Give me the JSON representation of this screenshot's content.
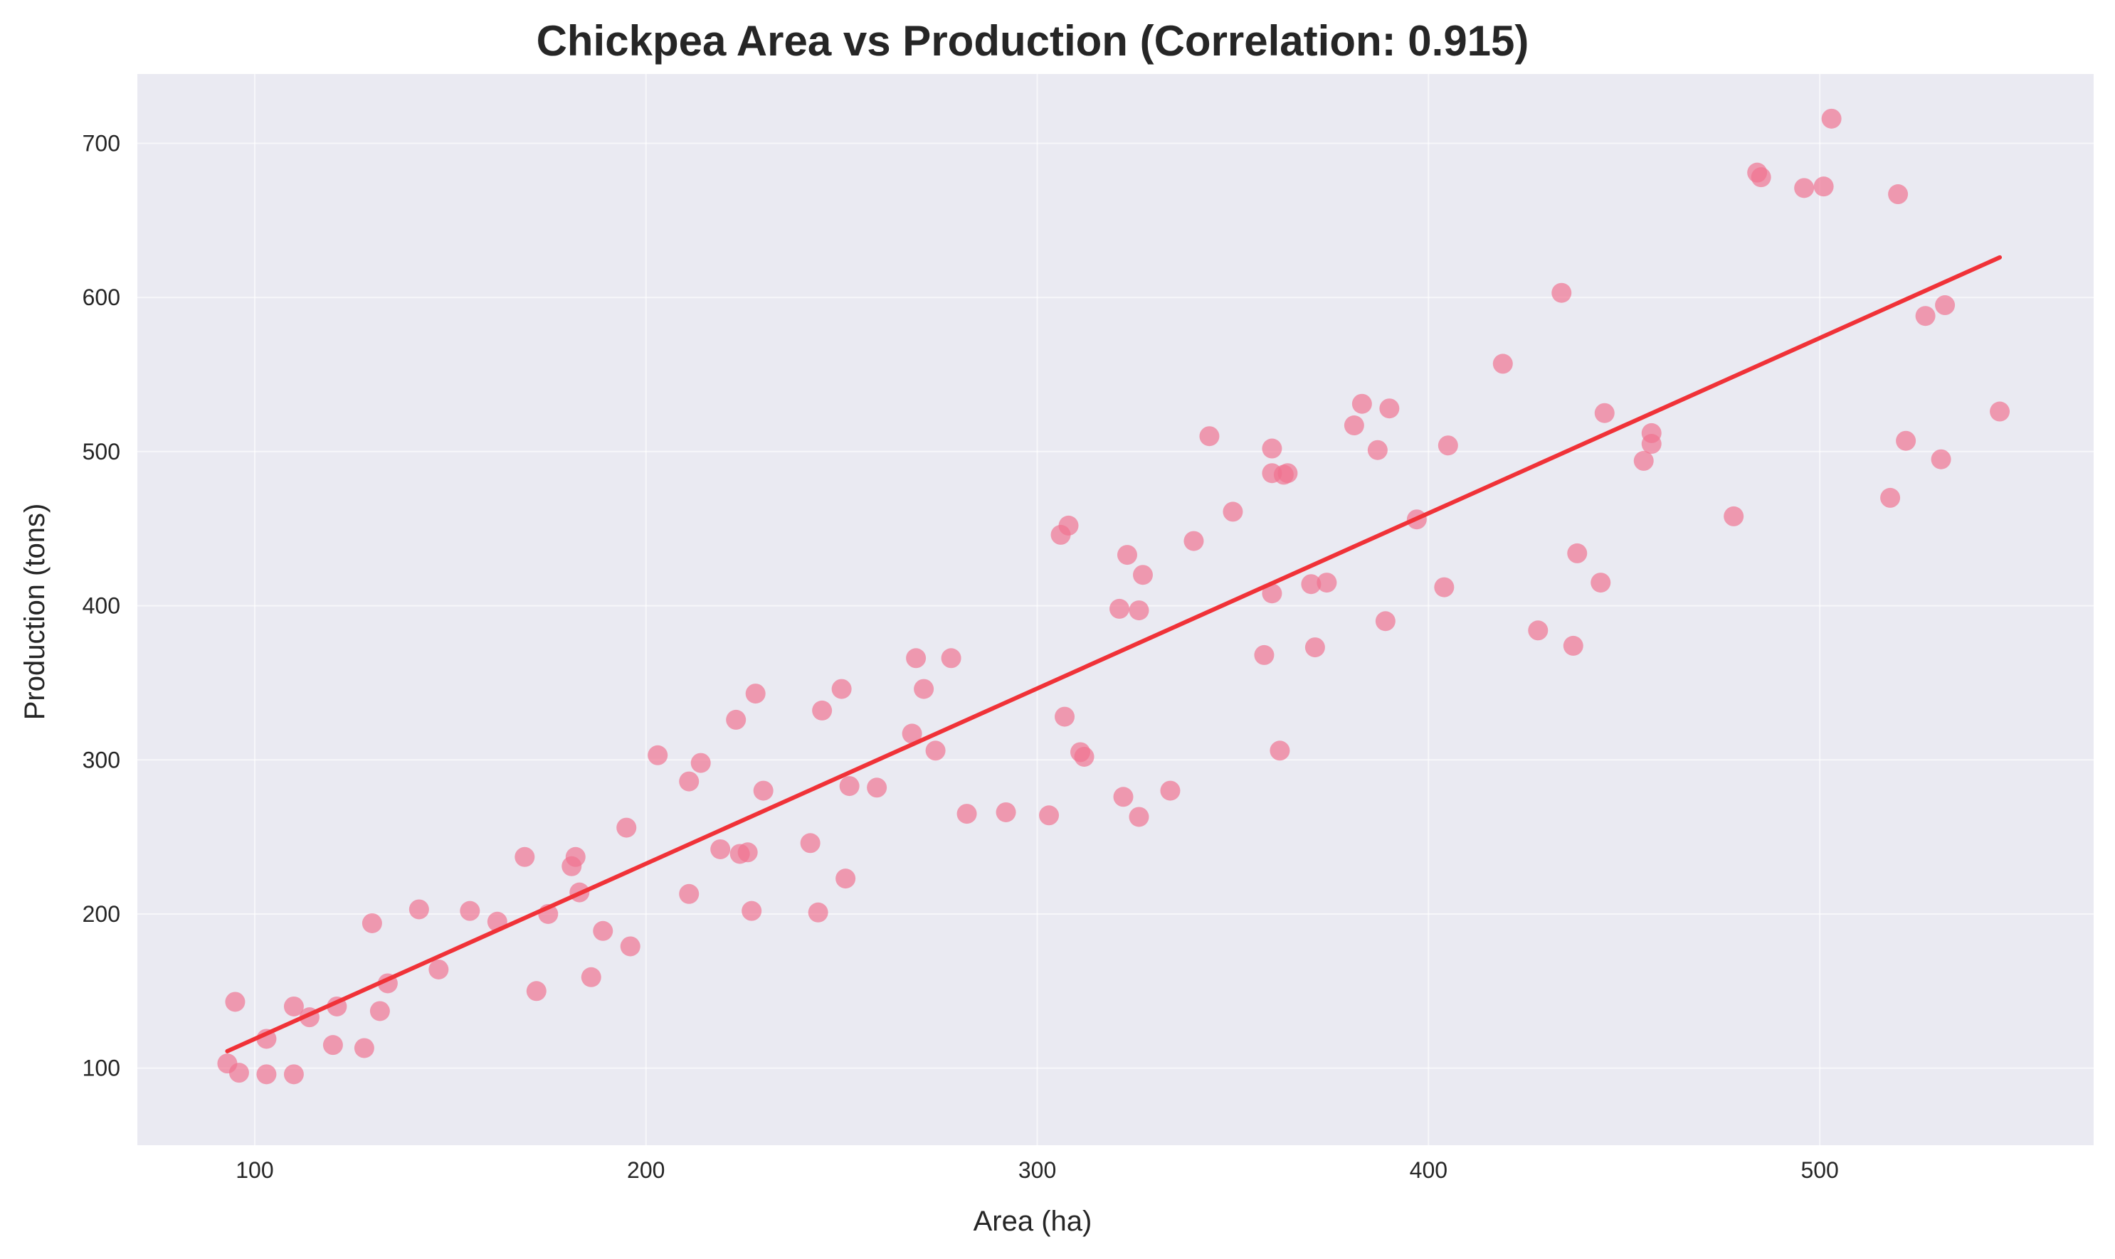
{
  "colors": {
    "plot_background": "#eaeaf2",
    "grid": "#ffffff",
    "points": "#f0728f",
    "trendline": "#f03238",
    "text": "#262626"
  },
  "chart_data": {
    "type": "scatter",
    "title": "Chickpea Area vs Production (Correlation: 0.915)",
    "xlabel": "Area (ha)",
    "ylabel": "Production (tons)",
    "xlim": [
      70,
      570
    ],
    "ylim": [
      50,
      745
    ],
    "xticks": [
      100,
      200,
      300,
      400,
      500
    ],
    "yticks": [
      100,
      200,
      300,
      400,
      500,
      600,
      700
    ],
    "grid": true,
    "legend": "none",
    "trendline": {
      "x": [
        93,
        546
      ],
      "y": [
        111,
        626
      ]
    },
    "x": [
      93,
      95,
      96,
      103,
      103,
      110,
      110,
      114,
      120,
      121,
      128,
      130,
      132,
      134,
      142,
      147,
      155,
      162,
      169,
      172,
      175,
      181,
      182,
      183,
      186,
      189,
      195,
      196,
      203,
      211,
      211,
      214,
      219,
      223,
      224,
      226,
      227,
      228,
      230,
      242,
      244,
      245,
      250,
      251,
      252,
      259,
      268,
      269,
      271,
      274,
      278,
      282,
      292,
      303,
      306,
      307,
      308,
      311,
      312,
      321,
      322,
      323,
      326,
      326,
      327,
      334,
      340,
      344,
      350,
      358,
      360,
      360,
      360,
      362,
      363,
      364,
      370,
      371,
      374,
      381,
      383,
      387,
      389,
      390,
      397,
      404,
      405,
      419,
      428,
      434,
      437,
      438,
      444,
      445,
      455,
      457,
      457,
      478,
      484,
      485,
      496,
      501,
      503,
      518,
      520,
      522,
      527,
      531,
      532,
      546
    ],
    "y": [
      103,
      143,
      97,
      119,
      96,
      140,
      96,
      133,
      115,
      140,
      113,
      194,
      137,
      155,
      203,
      164,
      202,
      195,
      237,
      150,
      200,
      231,
      237,
      214,
      159,
      189,
      256,
      179,
      303,
      286,
      213,
      298,
      242,
      326,
      239,
      240,
      202,
      343,
      280,
      246,
      201,
      332,
      346,
      223,
      283,
      282,
      317,
      366,
      346,
      306,
      366,
      265,
      266,
      264,
      446,
      328,
      452,
      305,
      302,
      398,
      276,
      433,
      263,
      397,
      420,
      280,
      442,
      510,
      461,
      368,
      408,
      486,
      502,
      306,
      485,
      486,
      414,
      373,
      415,
      517,
      531,
      501,
      390,
      528,
      456,
      412,
      504,
      557,
      384,
      603,
      374,
      434,
      415,
      525,
      494,
      505,
      512,
      458,
      681,
      678,
      671,
      672,
      716,
      470,
      667,
      507,
      588,
      495,
      595,
      526
    ]
  }
}
